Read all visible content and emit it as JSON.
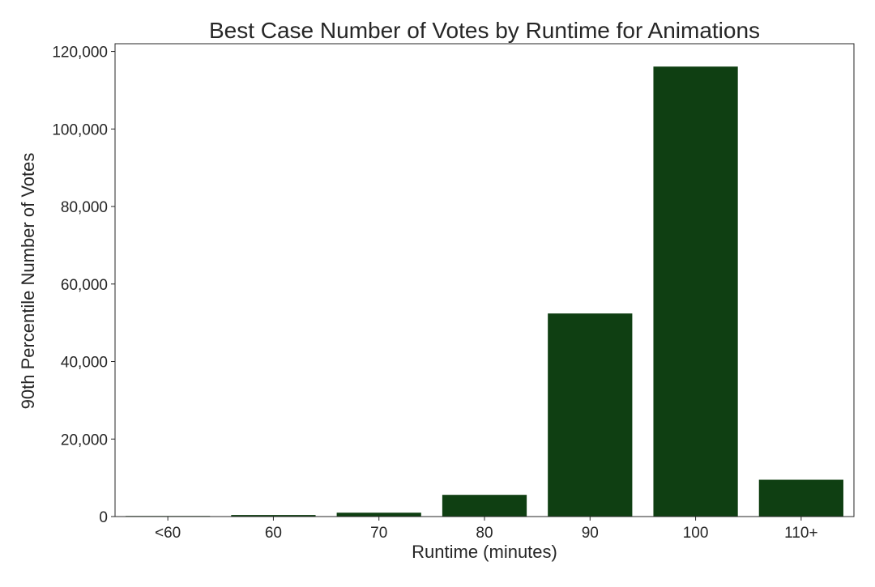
{
  "chart_data": {
    "type": "bar",
    "title": "Best Case Number of Votes by Runtime for Animations",
    "xlabel": "Runtime (minutes)",
    "ylabel": "90th Percentile Number of Votes",
    "categories": [
      "<60",
      "60",
      "70",
      "80",
      "90",
      "100",
      "110+"
    ],
    "values": [
      150,
      400,
      1000,
      5600,
      52400,
      116100,
      9500
    ],
    "ylim": [
      0,
      122000
    ],
    "yticks": [
      0,
      20000,
      40000,
      60000,
      80000,
      100000,
      120000
    ],
    "ytick_labels": [
      "0",
      "20,000",
      "40,000",
      "60,000",
      "80,000",
      "100,000",
      "120,000"
    ],
    "bar_color": "#0f3f12",
    "grid": false,
    "legend": "none"
  }
}
